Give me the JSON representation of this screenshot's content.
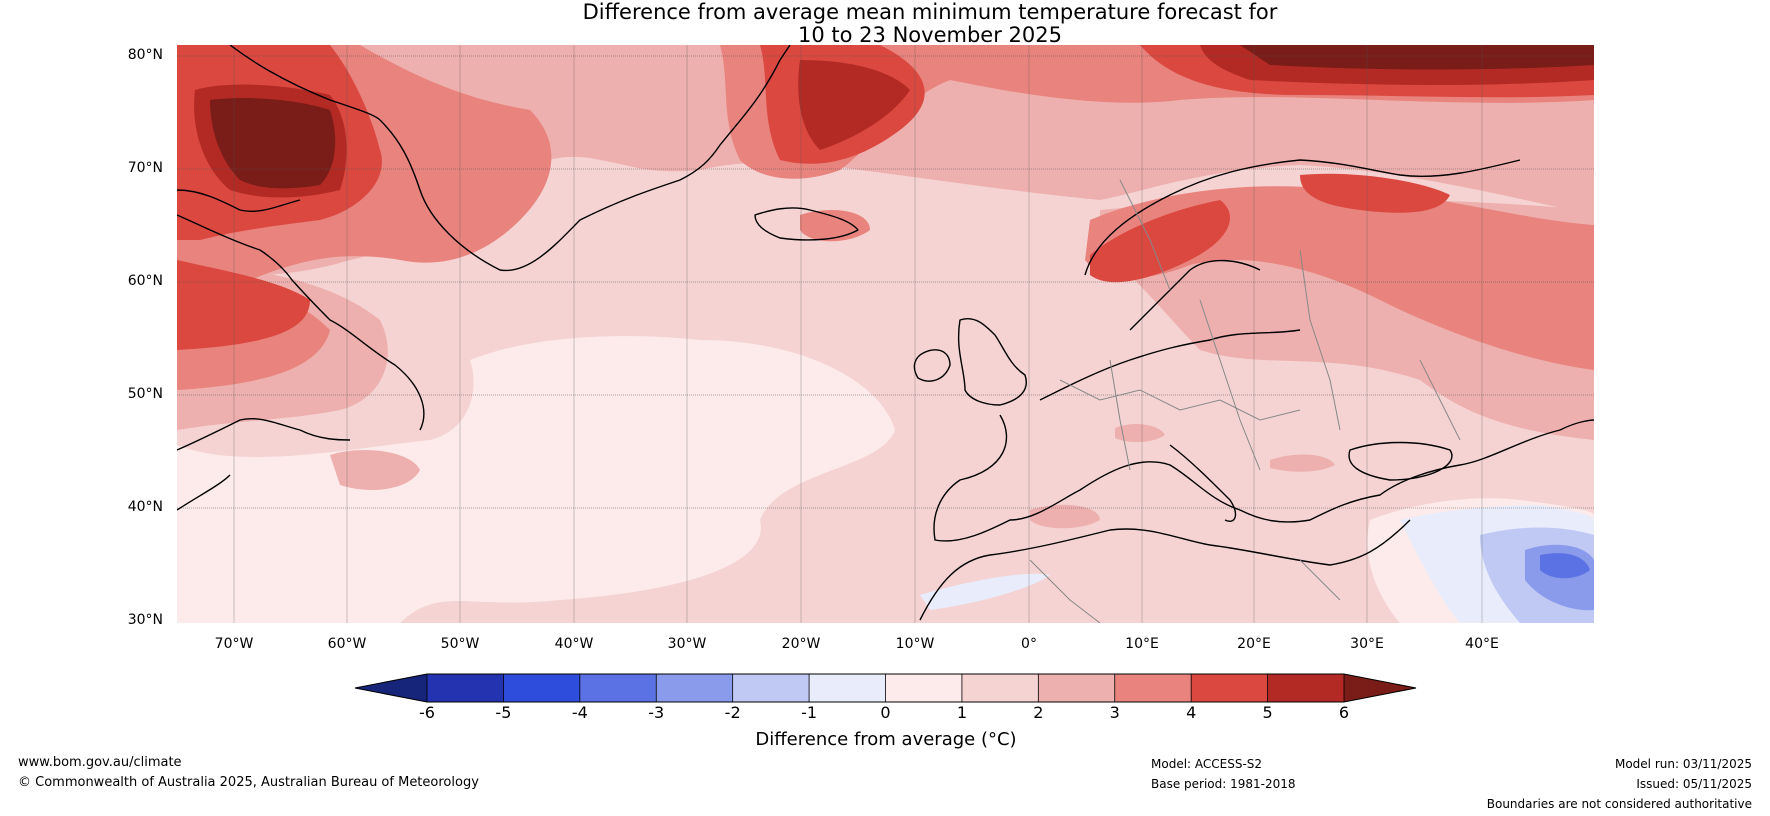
{
  "title": {
    "line1": "Difference from average mean minimum temperature forecast for",
    "line2": "10 to 23 November 2025"
  },
  "lat_labels": [
    "80°N",
    "70°N",
    "60°N",
    "50°N",
    "40°N",
    "30°N"
  ],
  "lon_labels": [
    "70°W",
    "60°W",
    "50°W",
    "40°W",
    "30°W",
    "20°W",
    "10°W",
    "0°",
    "10°E",
    "20°E",
    "30°E",
    "40°E"
  ],
  "colorbar": {
    "ticks": [
      "-6",
      "-5",
      "-4",
      "-3",
      "-2",
      "-1",
      "0",
      "1",
      "2",
      "3",
      "4",
      "5",
      "6"
    ],
    "colors": {
      "below_min": "#16247a",
      "bins": [
        "#2434b0",
        "#2f4ddc",
        "#5b72e4",
        "#8a9bec",
        "#c0c9f4",
        "#e8ecfb",
        "#fcebea",
        "#f5d3d3",
        "#eeb0ae",
        "#e8837d",
        "#db4840",
        "#b32a24"
      ],
      "above_max": "#7a1c17"
    },
    "label": "Difference from average (°C)"
  },
  "footer": {
    "website": "www.bom.gov.au/climate",
    "copyright": "© Commonwealth of Australia 2025, Australian Bureau of Meteorology",
    "model": "Model: ACCESS-S2",
    "base_period": "Base period: 1981-2018",
    "model_run": "Model run: 03/11/2025",
    "issued": "Issued: 05/11/2025",
    "disclaimer": "Boundaries are not considered authoritative"
  }
}
